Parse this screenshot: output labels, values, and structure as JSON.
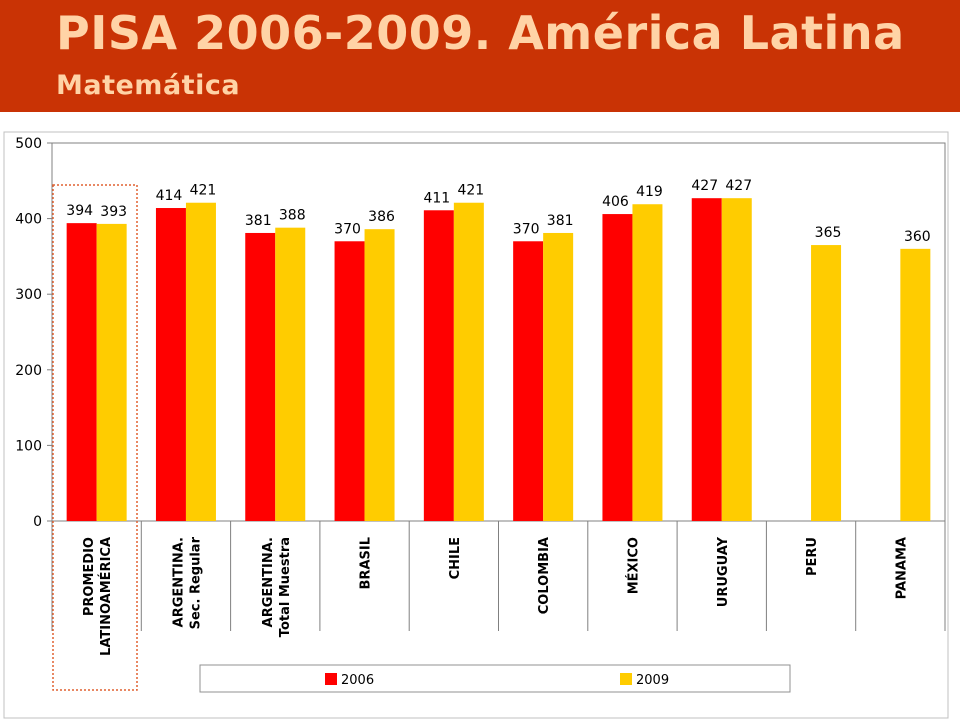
{
  "header": {
    "title": "PISA 2006-2009. América Latina",
    "subtitle": "Matemática"
  },
  "colors": {
    "header_bg": "#c93305",
    "title_text": "#ffd3a6",
    "series_2006": "#ff0000",
    "series_2009": "#ffcc00",
    "highlight_border": "#e06030"
  },
  "chart_data": {
    "type": "bar",
    "title": "",
    "xlabel": "",
    "ylabel": "",
    "ylim": [
      0,
      500
    ],
    "yticks": [
      0,
      100,
      200,
      300,
      400,
      500
    ],
    "grid": false,
    "legend_position": "bottom",
    "categories": [
      [
        "PROMEDIO",
        "LATINOAMÉRICA"
      ],
      [
        "ARGENTINA.",
        "Sec. Regular"
      ],
      [
        "ARGENTINA.",
        "Total Muestra"
      ],
      [
        "BRASIL"
      ],
      [
        "CHILE"
      ],
      [
        "COLOMBIA"
      ],
      [
        "MÉXICO"
      ],
      [
        "URUGUAY"
      ],
      [
        "PERU"
      ],
      [
        "PANAMA"
      ]
    ],
    "highlighted_category": "PROMEDIO LATINOAMÉRICA",
    "series": [
      {
        "name": "2006",
        "values": [
          394,
          414,
          381,
          370,
          411,
          370,
          406,
          427,
          null,
          null
        ]
      },
      {
        "name": "2009",
        "values": [
          393,
          421,
          388,
          386,
          421,
          381,
          419,
          427,
          365,
          360
        ]
      }
    ]
  }
}
